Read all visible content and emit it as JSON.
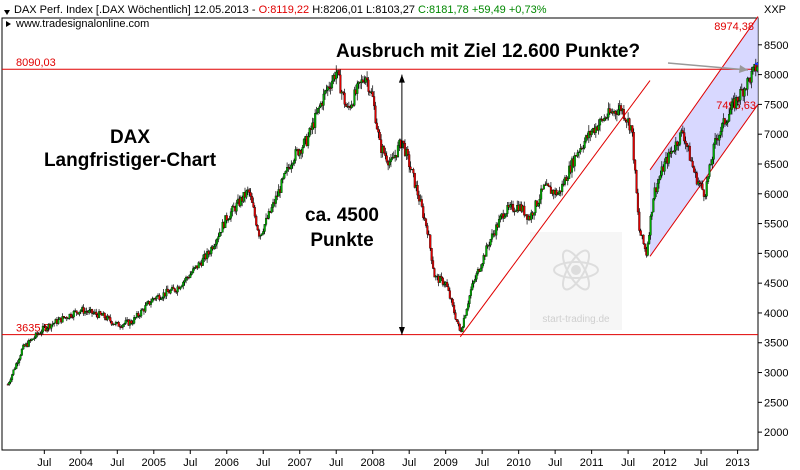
{
  "chart_data": {
    "type": "candlestick",
    "header": {
      "line1_prefix": "DAX Perf. Index [.DAX  Wöchentlich] 12.05.2013 - ",
      "open": "O:8119,22",
      "high": "H:8206,01",
      "low": "L:8103,27",
      "close_change": "C:8181,78 +59,49 +0,73%",
      "source": "www.tradesignalonline.com",
      "unit": "XXP"
    },
    "colors": {
      "up": "#00aa00",
      "down": "#dd0000",
      "close": "#1a3cff",
      "levels": "#e00000",
      "channel": "#e00000",
      "channel_fill": "#c8c8ff",
      "arrow": "#999999"
    },
    "ylim": [
      1700,
      8950
    ],
    "y_ticks": [
      "2000",
      "2500",
      "3000",
      "3500",
      "4000",
      "4500",
      "5000",
      "5500",
      "6000",
      "6500",
      "7000",
      "7500",
      "8000",
      "8500"
    ],
    "x_ticks": [
      {
        "label": "Jul",
        "x": 2003.5
      },
      {
        "label": "2004",
        "x": 2004.0
      },
      {
        "label": "Jul",
        "x": 2004.5
      },
      {
        "label": "2005",
        "x": 2005.0
      },
      {
        "label": "Jul",
        "x": 2005.5
      },
      {
        "label": "2006",
        "x": 2006.0
      },
      {
        "label": "Jul",
        "x": 2006.5
      },
      {
        "label": "2007",
        "x": 2007.0
      },
      {
        "label": "Jul",
        "x": 2007.5
      },
      {
        "label": "2008",
        "x": 2008.0
      },
      {
        "label": "Jul",
        "x": 2008.5
      },
      {
        "label": "2009",
        "x": 2009.0
      },
      {
        "label": "Jul",
        "x": 2009.5
      },
      {
        "label": "2010",
        "x": 2010.0
      },
      {
        "label": "Jul",
        "x": 2010.5
      },
      {
        "label": "2011",
        "x": 2011.0
      },
      {
        "label": "Jul",
        "x": 2011.5
      },
      {
        "label": "2012",
        "x": 2012.0
      },
      {
        "label": "Jul",
        "x": 2012.5
      },
      {
        "label": "2013",
        "x": 2013.0
      }
    ],
    "xlim": [
      2002.92,
      2013.28
    ],
    "price_path": [
      [
        2003.0,
        2800
      ],
      [
        2003.2,
        3400
      ],
      [
        2003.5,
        3750
      ],
      [
        2003.9,
        4000
      ],
      [
        2004.0,
        4050
      ],
      [
        2004.3,
        3950
      ],
      [
        2004.5,
        3800
      ],
      [
        2004.7,
        3850
      ],
      [
        2005.0,
        4250
      ],
      [
        2005.3,
        4400
      ],
      [
        2005.5,
        4650
      ],
      [
        2005.75,
        5000
      ],
      [
        2006.0,
        5600
      ],
      [
        2006.3,
        6050
      ],
      [
        2006.45,
        5300
      ],
      [
        2006.6,
        5700
      ],
      [
        2006.9,
        6600
      ],
      [
        2007.1,
        6900
      ],
      [
        2007.35,
        7700
      ],
      [
        2007.5,
        8050
      ],
      [
        2007.65,
        7400
      ],
      [
        2007.9,
        8000
      ],
      [
        2008.0,
        7600
      ],
      [
        2008.1,
        6800
      ],
      [
        2008.25,
        6500
      ],
      [
        2008.4,
        6900
      ],
      [
        2008.55,
        6300
      ],
      [
        2008.75,
        5400
      ],
      [
        2008.85,
        4600
      ],
      [
        2009.0,
        4500
      ],
      [
        2009.2,
        3666
      ],
      [
        2009.35,
        4400
      ],
      [
        2009.6,
        5200
      ],
      [
        2009.8,
        5700
      ],
      [
        2010.0,
        5800
      ],
      [
        2010.15,
        5600
      ],
      [
        2010.35,
        6100
      ],
      [
        2010.55,
        6000
      ],
      [
        2010.8,
        6700
      ],
      [
        2011.0,
        7050
      ],
      [
        2011.2,
        7300
      ],
      [
        2011.4,
        7450
      ],
      [
        2011.55,
        7100
      ],
      [
        2011.65,
        5400
      ],
      [
        2011.75,
        5000
      ],
      [
        2011.85,
        6000
      ],
      [
        2012.0,
        6500
      ],
      [
        2012.25,
        7050
      ],
      [
        2012.42,
        6300
      ],
      [
        2012.55,
        6000
      ],
      [
        2012.7,
        6900
      ],
      [
        2012.9,
        7400
      ],
      [
        2013.05,
        7700
      ],
      [
        2013.2,
        8000
      ],
      [
        2013.28,
        8181
      ]
    ],
    "levels": [
      {
        "label": "8090,03",
        "y": 8090.03
      },
      {
        "label": "3635,5",
        "y": 3635.5
      }
    ],
    "level_label_top_right": "8974,38",
    "level_label_channel": "7495,63",
    "lines": [
      {
        "name": "uptrend-line",
        "from": [
          2009.2,
          3600
        ],
        "to": [
          2011.8,
          7900
        ]
      },
      {
        "name": "channel-upper",
        "from": [
          2011.8,
          6400
        ],
        "to": [
          2013.28,
          8974
        ]
      },
      {
        "name": "channel-lower",
        "from": [
          2011.8,
          4950
        ],
        "to": [
          2013.28,
          7500
        ]
      }
    ],
    "annotations": {
      "title_line1": "DAX",
      "title_line2": "Langfristiger-Chart",
      "target_text": "Ausbruch mit Ziel 12.600 Punkte?",
      "range_line1": "ca. 4500",
      "range_line2": "Punkte",
      "range_arrow": {
        "x": 2008.4,
        "from": 3630,
        "to": 8000
      }
    },
    "watermark": "start-trading.de"
  }
}
